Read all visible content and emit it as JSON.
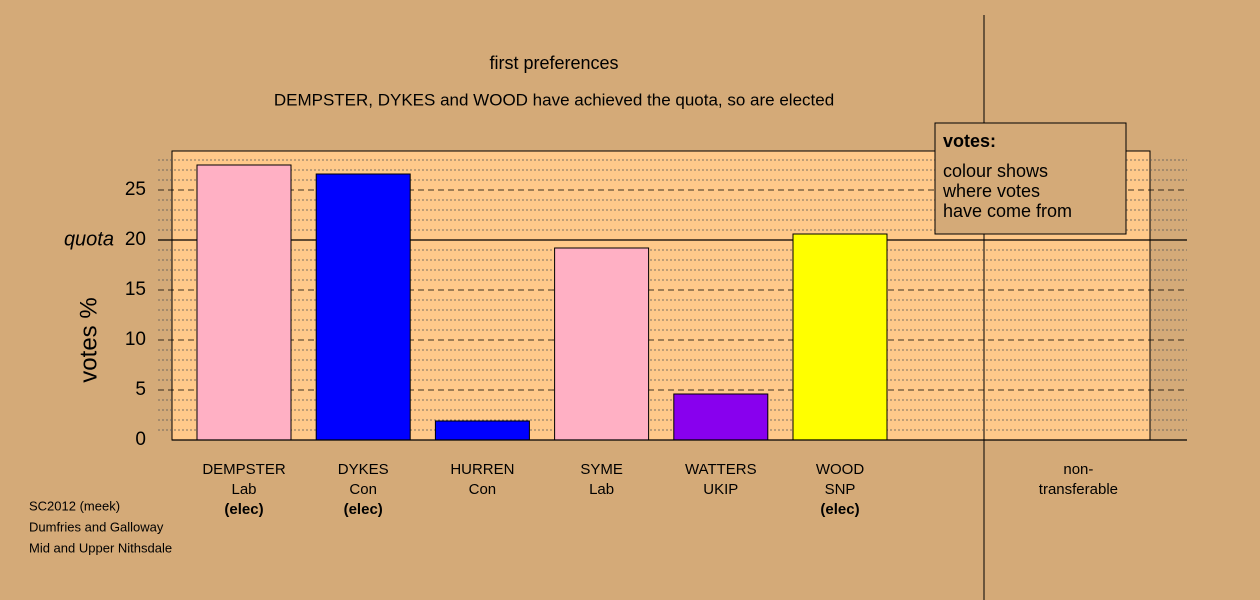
{
  "chart_data": {
    "type": "bar",
    "title": "first preferences",
    "subtitle": "DEMPSTER, DYKES and WOOD have achieved the quota, so are elected",
    "y_label": "votes %",
    "categories": [
      "DEMPSTER",
      "DYKES",
      "HURREN",
      "SYME",
      "WATTERS",
      "WOOD",
      null,
      "non-transferable"
    ],
    "parties": [
      "Lab",
      "Con",
      "Con",
      "Lab",
      "UKIP",
      "SNP",
      null,
      null
    ],
    "status_labels": [
      "(elec)",
      "(elec)",
      null,
      null,
      null,
      "(elec)",
      null,
      null
    ],
    "values": [
      27.5,
      26.6,
      1.9,
      19.2,
      4.6,
      20.6,
      null,
      0
    ],
    "colors": [
      "#ffb0c4",
      "#0000ff",
      "#0000ff",
      "#ffb0c4",
      "#8800ee",
      "#ffff00",
      null,
      null
    ],
    "ylim": [
      0,
      28.9
    ],
    "yticks": [
      0,
      5,
      10,
      15,
      20,
      25
    ],
    "minor_yticks": [
      1,
      2,
      3,
      4,
      6,
      7,
      8,
      9,
      11,
      12,
      13,
      14,
      16,
      17,
      18,
      19,
      21,
      22,
      23,
      24,
      26,
      27,
      28
    ],
    "quota": {
      "value": 20,
      "label": "quota"
    },
    "grid": true,
    "legend_note": {
      "title": "votes:",
      "lines": [
        "colour shows",
        "where votes",
        "have come from"
      ]
    },
    "footnote": [
      "SC2012 (meek)",
      "Dumfries and Galloway",
      "Mid and Upper Nithsdale"
    ]
  }
}
